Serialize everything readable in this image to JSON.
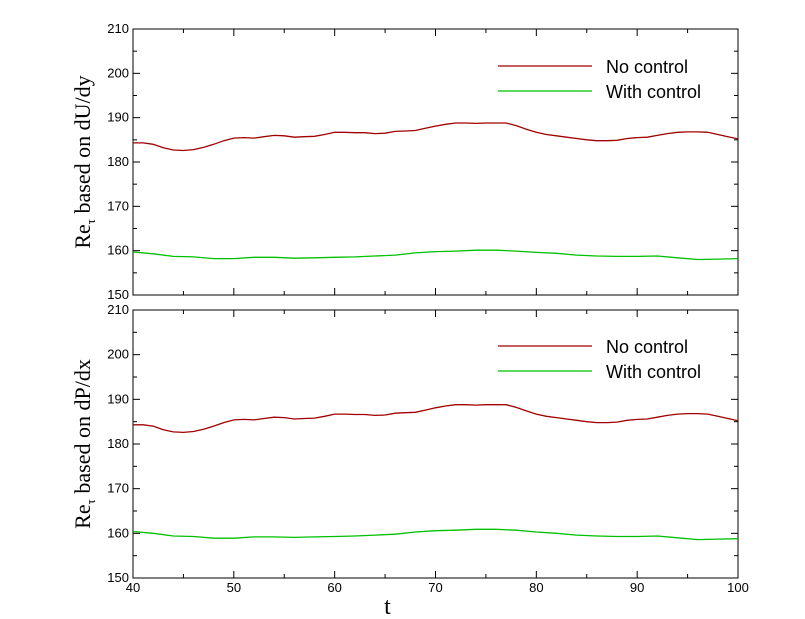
{
  "chart_data": [
    {
      "type": "line",
      "ylabel_main": "Re",
      "ylabel_sub": "τ",
      "ylabel_rest": " based on dU/dy",
      "xlabel": "",
      "xlim": [
        40,
        100
      ],
      "ylim": [
        150,
        210
      ],
      "xticks": [
        "40",
        "50",
        "60",
        "70",
        "80",
        "90",
        "100"
      ],
      "yticks": [
        "150",
        "160",
        "170",
        "180",
        "190",
        "200",
        "210"
      ],
      "show_xtick_labels": false,
      "legend_position": "top-right",
      "series": [
        {
          "name": "No control",
          "color": "#a00000",
          "x": [
            40,
            41,
            42,
            43,
            44,
            45,
            46,
            47,
            48,
            49,
            50,
            51,
            52,
            53,
            54,
            55,
            56,
            57,
            58,
            59,
            60,
            61,
            62,
            63,
            64,
            65,
            66,
            67,
            68,
            69,
            70,
            71,
            72,
            73,
            74,
            75,
            76,
            77,
            78,
            79,
            80,
            81,
            82,
            83,
            84,
            85,
            86,
            87,
            88,
            89,
            90,
            91,
            92,
            93,
            94,
            95,
            96,
            97,
            98,
            99,
            100
          ],
          "y": [
            184.3,
            184.3,
            184.0,
            183.2,
            182.7,
            182.6,
            182.8,
            183.3,
            184.0,
            184.8,
            185.4,
            185.5,
            185.4,
            185.7,
            186.0,
            185.9,
            185.6,
            185.7,
            185.8,
            186.2,
            186.7,
            186.7,
            186.6,
            186.6,
            186.4,
            186.5,
            186.9,
            187.0,
            187.1,
            187.6,
            188.1,
            188.5,
            188.8,
            188.8,
            188.7,
            188.8,
            188.8,
            188.8,
            188.2,
            187.4,
            186.7,
            186.2,
            185.9,
            185.6,
            185.3,
            185.0,
            184.8,
            184.8,
            184.9,
            185.3,
            185.5,
            185.6,
            186.0,
            186.4,
            186.7,
            186.8,
            186.8,
            186.7,
            186.2,
            185.7,
            185.2
          ]
        },
        {
          "name": "With control",
          "color": "#00c000",
          "x": [
            40,
            42,
            44,
            46,
            48,
            50,
            52,
            54,
            56,
            58,
            60,
            62,
            64,
            66,
            68,
            70,
            72,
            74,
            76,
            78,
            80,
            82,
            84,
            86,
            88,
            90,
            92,
            94,
            96,
            98,
            100
          ],
          "y": [
            159.7,
            159.3,
            158.7,
            158.6,
            158.2,
            158.2,
            158.5,
            158.5,
            158.3,
            158.4,
            158.5,
            158.6,
            158.8,
            159.0,
            159.5,
            159.8,
            159.9,
            160.1,
            160.1,
            159.9,
            159.6,
            159.4,
            159.0,
            158.8,
            158.7,
            158.7,
            158.8,
            158.4,
            158.0,
            158.1,
            158.2
          ]
        }
      ]
    },
    {
      "type": "line",
      "ylabel_main": "Re",
      "ylabel_sub": "τ",
      "ylabel_rest": " based on dP/dx",
      "xlabel": "t",
      "xlim": [
        40,
        100
      ],
      "ylim": [
        150,
        210
      ],
      "xticks": [
        "40",
        "50",
        "60",
        "70",
        "80",
        "90",
        "100"
      ],
      "yticks": [
        "150",
        "160",
        "170",
        "180",
        "190",
        "200",
        "210"
      ],
      "show_xtick_labels": true,
      "legend_position": "top-right",
      "series": [
        {
          "name": "No control",
          "color": "#a00000",
          "x": [
            40,
            41,
            42,
            43,
            44,
            45,
            46,
            47,
            48,
            49,
            50,
            51,
            52,
            53,
            54,
            55,
            56,
            57,
            58,
            59,
            60,
            61,
            62,
            63,
            64,
            65,
            66,
            67,
            68,
            69,
            70,
            71,
            72,
            73,
            74,
            75,
            76,
            77,
            78,
            79,
            80,
            81,
            82,
            83,
            84,
            85,
            86,
            87,
            88,
            89,
            90,
            91,
            92,
            93,
            94,
            95,
            96,
            97,
            98,
            99,
            100
          ],
          "y": [
            184.3,
            184.3,
            184.0,
            183.2,
            182.7,
            182.6,
            182.8,
            183.3,
            184.0,
            184.8,
            185.4,
            185.5,
            185.4,
            185.7,
            186.0,
            185.9,
            185.6,
            185.7,
            185.8,
            186.2,
            186.7,
            186.7,
            186.6,
            186.6,
            186.4,
            186.5,
            186.9,
            187.0,
            187.1,
            187.6,
            188.1,
            188.5,
            188.8,
            188.8,
            188.7,
            188.8,
            188.8,
            188.8,
            188.2,
            187.4,
            186.7,
            186.2,
            185.9,
            185.6,
            185.3,
            185.0,
            184.8,
            184.8,
            184.9,
            185.3,
            185.5,
            185.6,
            186.0,
            186.4,
            186.7,
            186.8,
            186.8,
            186.7,
            186.2,
            185.7,
            185.2
          ]
        },
        {
          "name": "With control",
          "color": "#00c000",
          "x": [
            40,
            42,
            44,
            46,
            48,
            50,
            52,
            54,
            56,
            58,
            60,
            62,
            64,
            66,
            68,
            70,
            72,
            74,
            76,
            78,
            80,
            82,
            84,
            86,
            88,
            90,
            92,
            94,
            96,
            98,
            100
          ],
          "y": [
            160.4,
            160.0,
            159.4,
            159.3,
            158.9,
            158.9,
            159.2,
            159.2,
            159.1,
            159.2,
            159.3,
            159.4,
            159.6,
            159.8,
            160.3,
            160.6,
            160.7,
            160.9,
            160.9,
            160.7,
            160.3,
            160.0,
            159.6,
            159.4,
            159.3,
            159.3,
            159.4,
            159.0,
            158.6,
            158.7,
            158.8
          ]
        }
      ]
    }
  ]
}
